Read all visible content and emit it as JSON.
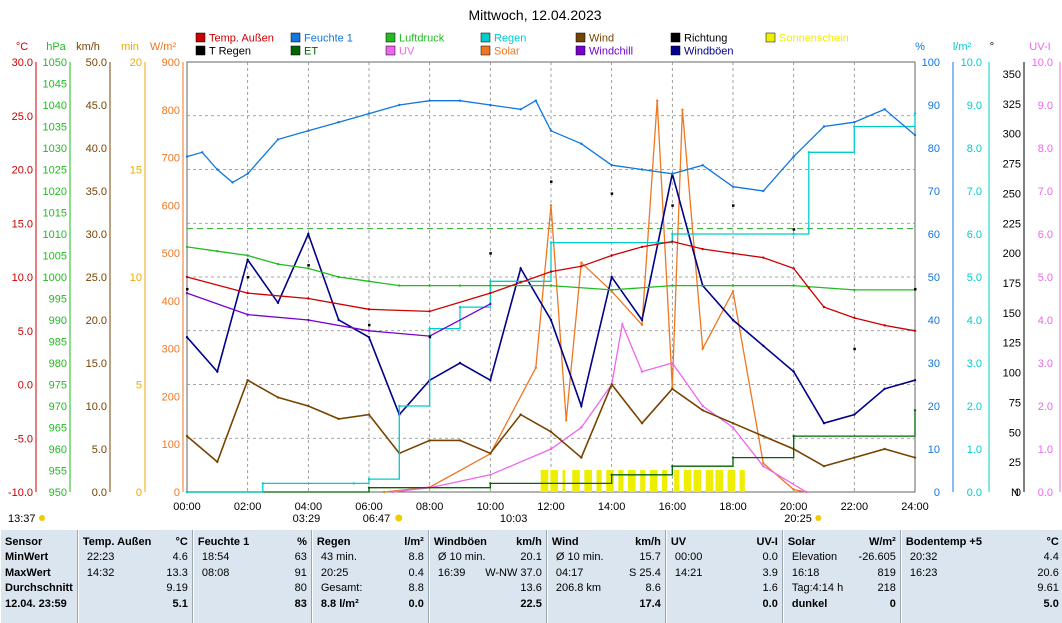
{
  "title": "Mittwoch, 12.04.2023",
  "colors": {
    "temp": "#cc0000",
    "humidity": "#1177dd",
    "pressure": "#22bb22",
    "rain": "#00cccc",
    "wind": "#774400",
    "direction": "#000000",
    "sunshine": "#eeee00",
    "rain_t": "#eeaa00",
    "et": "#006600",
    "uv": "#ee66ee",
    "solar": "#ee7722",
    "windchill": "#7700cc",
    "gusts": "#000088",
    "grid": "#888888",
    "dew_dash": "#22aa22"
  },
  "legend": [
    {
      "label": "Temp. Außen",
      "color": "#cc0000"
    },
    {
      "label": "Feuchte 1",
      "color": "#1177dd"
    },
    {
      "label": "Luftdruck",
      "color": "#22bb22"
    },
    {
      "label": "Regen",
      "color": "#00cccc"
    },
    {
      "label": "Wind",
      "color": "#774400"
    },
    {
      "label": "Richtung",
      "color": "#000000"
    },
    {
      "label": "Sonnenschein",
      "color": "#eeee00"
    },
    {
      "label": "T Regen",
      "color": "#000000"
    },
    {
      "label": "ET",
      "color": "#006600"
    },
    {
      "label": "UV",
      "color": "#ee66ee"
    },
    {
      "label": "Solar",
      "color": "#ee7722"
    },
    {
      "label": "Windchill",
      "color": "#7700cc"
    },
    {
      "label": "Windböen",
      "color": "#000088"
    }
  ],
  "axes_left": [
    {
      "unit": "°C",
      "color": "#cc0000",
      "ticks": [
        "30.0",
        "25.0",
        "20.0",
        "15.0",
        "10.0",
        "5.0",
        "0.0",
        "-5.0",
        "-10.0"
      ]
    },
    {
      "unit": "hPa",
      "color": "#22bb22",
      "ticks": [
        "1050",
        "1045",
        "1040",
        "1035",
        "1030",
        "1025",
        "1020",
        "1015",
        "1010",
        "1005",
        "1000",
        "995",
        "990",
        "985",
        "980",
        "975",
        "970",
        "965",
        "960",
        "955",
        "950"
      ]
    },
    {
      "unit": "km/h",
      "color": "#774400",
      "ticks": [
        "50.0",
        "45.0",
        "40.0",
        "35.0",
        "30.0",
        "25.0",
        "20.0",
        "15.0",
        "10.0",
        "5.0",
        "0.0"
      ]
    },
    {
      "unit": "min",
      "color": "#eeaa00",
      "ticks": [
        "20",
        "15",
        "10",
        "5",
        "0"
      ]
    },
    {
      "unit": "W/m²",
      "color": "#ee7722",
      "ticks": [
        "900",
        "800",
        "700",
        "600",
        "500",
        "400",
        "300",
        "200",
        "100",
        "0"
      ]
    }
  ],
  "axes_right": [
    {
      "unit": "%",
      "color": "#1177dd",
      "ticks": [
        "100",
        "90",
        "80",
        "70",
        "60",
        "50",
        "40",
        "30",
        "20",
        "10",
        "0"
      ]
    },
    {
      "unit": "l/m²",
      "color": "#00cccc",
      "ticks": [
        "10.0",
        "9.0",
        "8.0",
        "7.0",
        "6.0",
        "5.0",
        "4.0",
        "3.0",
        "2.0",
        "1.0",
        "0.0"
      ]
    },
    {
      "unit": "°",
      "color": "#000000",
      "ticks": [
        "350",
        "325",
        "300",
        "275",
        "250",
        "225",
        "200",
        "175",
        "150",
        "125",
        "100",
        "75",
        "50",
        "25",
        "0"
      ],
      "bottom_label": "N"
    },
    {
      "unit": "UV-I",
      "color": "#ee66ee",
      "ticks": [
        "10.0",
        "9.0",
        "8.0",
        "7.0",
        "6.0",
        "5.0",
        "4.0",
        "3.0",
        "2.0",
        "1.0",
        "0.0"
      ]
    }
  ],
  "x_ticks": [
    "00:00",
    "02:00",
    "04:00",
    "06:00",
    "08:00",
    "10:00",
    "12:00",
    "14:00",
    "16:00",
    "18:00",
    "20:00",
    "22:00",
    "24:00"
  ],
  "time_markers": {
    "left": "13:37",
    "moonrise": "03:29",
    "sunrise": "06:47",
    "rain_marker": "10:03",
    "sunset": "20:25"
  },
  "chart_data": {
    "type": "line",
    "title": "Mittwoch, 12.04.2023",
    "x_range": [
      "00:00",
      "24:00"
    ],
    "series": [
      {
        "name": "Temp. Außen",
        "unit": "°C",
        "x": [
          "00:00",
          "02:00",
          "04:00",
          "06:00",
          "08:00",
          "10:00",
          "11:00",
          "12:00",
          "13:00",
          "14:00",
          "15:00",
          "16:00",
          "17:00",
          "18:00",
          "19:00",
          "20:00",
          "20:30",
          "21:00",
          "22:00",
          "23:00",
          "24:00"
        ],
        "values": [
          10.0,
          8.5,
          8.0,
          7.0,
          6.8,
          8.5,
          9.5,
          10.5,
          11.0,
          12.0,
          12.8,
          13.3,
          12.6,
          12.2,
          11.8,
          10.8,
          9.0,
          7.2,
          6.2,
          5.5,
          5.0
        ]
      },
      {
        "name": "Feuchte 1",
        "unit": "%",
        "x": [
          "00:00",
          "00:30",
          "01:00",
          "01:30",
          "02:00",
          "03:00",
          "04:00",
          "05:00",
          "06:00",
          "07:00",
          "08:00",
          "09:00",
          "10:00",
          "11:00",
          "11:30",
          "12:00",
          "13:00",
          "14:00",
          "15:00",
          "16:00",
          "17:00",
          "18:00",
          "19:00",
          "20:00",
          "21:00",
          "22:00",
          "23:00",
          "24:00"
        ],
        "values": [
          78,
          79,
          75,
          72,
          74,
          82,
          84,
          86,
          88,
          90,
          91,
          91,
          90,
          89,
          91,
          84,
          81,
          76,
          75,
          74,
          76,
          71,
          70,
          78,
          85,
          86,
          89,
          83
        ]
      },
      {
        "name": "Luftdruck",
        "unit": "hPa",
        "x": [
          "00:00",
          "01:00",
          "02:00",
          "03:00",
          "04:00",
          "05:00",
          "06:00",
          "07:00",
          "08:00",
          "09:00",
          "10:00",
          "12:00",
          "14:00",
          "16:00",
          "18:00",
          "20:00",
          "22:00",
          "24:00"
        ],
        "values": [
          1007,
          1006,
          1005,
          1003,
          1002,
          1000,
          999,
          998,
          998,
          998,
          998,
          998,
          997,
          998,
          998,
          998,
          997,
          997
        ]
      },
      {
        "name": "Regen",
        "unit": "l/m²",
        "x": [
          "00:00",
          "02:30",
          "05:30",
          "06:00",
          "07:00",
          "08:00",
          "09:00",
          "10:00",
          "12:00",
          "15:30",
          "16:00",
          "20:00",
          "20:30",
          "22:00",
          "24:00"
        ],
        "values": [
          0,
          0.2,
          0.2,
          0.3,
          2.0,
          3.8,
          4.3,
          4.9,
          5.8,
          5.8,
          6.0,
          6.0,
          7.9,
          8.5,
          8.8
        ]
      },
      {
        "name": "Wind",
        "unit": "km/h",
        "x": [
          "00:00",
          "01:00",
          "02:00",
          "03:00",
          "04:00",
          "05:00",
          "06:00",
          "07:00",
          "08:00",
          "09:00",
          "10:00",
          "11:00",
          "12:00",
          "13:00",
          "14:00",
          "15:00",
          "16:00",
          "17:00",
          "18:00",
          "19:00",
          "20:00",
          "21:00",
          "22:00",
          "23:00",
          "24:00"
        ],
        "values": [
          6.5,
          3.5,
          13.0,
          11.0,
          10.0,
          8.5,
          9.0,
          4.5,
          6.0,
          6.0,
          4.5,
          9.0,
          7.0,
          4.0,
          12.5,
          8.0,
          12.0,
          9.5,
          8.0,
          6.5,
          5.0,
          3.0,
          4.0,
          5.0,
          4.0
        ]
      },
      {
        "name": "Windböen",
        "unit": "km/h",
        "x": [
          "00:00",
          "01:00",
          "02:00",
          "03:00",
          "04:00",
          "05:00",
          "06:00",
          "07:00",
          "08:00",
          "09:00",
          "10:00",
          "11:00",
          "12:00",
          "13:00",
          "14:00",
          "15:00",
          "16:00",
          "17:00",
          "18:00",
          "19:00",
          "20:00",
          "21:00",
          "22:00",
          "23:00",
          "24:00"
        ],
        "values": [
          18,
          14,
          27,
          22,
          30,
          20,
          18,
          9,
          13,
          15,
          13,
          26,
          20,
          10,
          25,
          20,
          37,
          24,
          20,
          17,
          14,
          8,
          9,
          12,
          13
        ]
      },
      {
        "name": "Windchill",
        "unit": "°C",
        "x": [
          "00:00",
          "02:00",
          "04:00",
          "06:00",
          "08:00",
          "10:00"
        ],
        "values": [
          8.5,
          6.5,
          6.0,
          5.0,
          4.5,
          7.5
        ]
      },
      {
        "name": "Solar",
        "unit": "W/m²",
        "x": [
          "06:30",
          "08:00",
          "10:00",
          "11:30",
          "12:00",
          "12:30",
          "13:00",
          "14:00",
          "15:00",
          "15:30",
          "16:00",
          "16:20",
          "17:00",
          "18:00",
          "19:00",
          "20:00",
          "20:25"
        ],
        "values": [
          0,
          10,
          80,
          260,
          600,
          150,
          480,
          420,
          350,
          819,
          220,
          800,
          300,
          420,
          60,
          5,
          0
        ]
      },
      {
        "name": "UV",
        "unit": "UV-I",
        "x": [
          "06:47",
          "08:00",
          "10:00",
          "12:00",
          "13:00",
          "14:00",
          "14:21",
          "15:00",
          "16:00",
          "17:00",
          "18:00",
          "19:00",
          "20:25"
        ],
        "values": [
          0,
          0.1,
          0.4,
          1.0,
          1.5,
          2.5,
          3.9,
          2.8,
          3.0,
          2.0,
          1.5,
          0.6,
          0
        ]
      },
      {
        "name": "ET",
        "unit": "l/m²",
        "x": [
          "00:00",
          "06:00",
          "10:00",
          "14:00",
          "16:00",
          "18:00",
          "20:00",
          "24:00"
        ],
        "values": [
          0,
          0.1,
          0.2,
          0.4,
          0.6,
          0.8,
          1.3,
          1.9
        ]
      },
      {
        "name": "Richtung",
        "unit": "°",
        "x": [
          "00:00",
          "02:00",
          "04:00",
          "06:00",
          "08:00",
          "10:00",
          "12:00",
          "14:00",
          "16:00",
          "18:00",
          "20:00",
          "22:00",
          "24:00"
        ],
        "values": [
          170,
          180,
          190,
          140,
          130,
          200,
          260,
          250,
          240,
          240,
          220,
          120,
          170
        ]
      }
    ]
  },
  "stats": {
    "row_labels": [
      "Sensor",
      "MinWert",
      "MaxWert",
      "Durchschnitt",
      "12.04.  23:59"
    ],
    "groups": [
      {
        "name": "Temp. Außen",
        "unit": "°C",
        "rows": [
          [
            "22:23",
            "4.6"
          ],
          [
            "14:32",
            "13.3"
          ],
          [
            "",
            "9.19"
          ],
          [
            "",
            "5.1"
          ]
        ]
      },
      {
        "name": "Feuchte 1",
        "unit": "%",
        "rows": [
          [
            "18:54",
            "63"
          ],
          [
            "08:08",
            "91"
          ],
          [
            "",
            "80"
          ],
          [
            "",
            "83"
          ]
        ]
      },
      {
        "name": "Regen",
        "unit": "l/m²",
        "rows": [
          [
            "43 min.",
            "8.8"
          ],
          [
            "20:25",
            "0.4"
          ],
          [
            "Gesamt:",
            "8.8"
          ],
          [
            "8.8 l/m²",
            "0.0"
          ]
        ]
      },
      {
        "name": "Windböen",
        "unit": "km/h",
        "rows": [
          [
            "Ø 10 min.",
            "20.1"
          ],
          [
            "16:39",
            "W-NW 37.0"
          ],
          [
            "",
            "13.6"
          ],
          [
            "",
            "22.5"
          ]
        ]
      },
      {
        "name": "Wind",
        "unit": "km/h",
        "rows": [
          [
            "Ø 10 min.",
            "15.7"
          ],
          [
            "04:17",
            "S 25.4"
          ],
          [
            "206.8 km",
            "8.6"
          ],
          [
            "",
            "17.4"
          ]
        ]
      },
      {
        "name": "UV",
        "unit": "UV-I",
        "rows": [
          [
            "00:00",
            "0.0"
          ],
          [
            "14:21",
            "3.9"
          ],
          [
            "",
            "1.6"
          ],
          [
            "",
            "0.0"
          ]
        ]
      },
      {
        "name": "Solar",
        "unit": "W/m²",
        "rows": [
          [
            "Elevation",
            "-26.605"
          ],
          [
            "16:18",
            "819"
          ],
          [
            "Tag:4:14 h",
            "218"
          ],
          [
            "dunkel",
            "0"
          ]
        ]
      },
      {
        "name": "Bodentemp +5",
        "unit": "°C",
        "rows": [
          [
            "20:32",
            "4.4"
          ],
          [
            "16:23",
            "20.6"
          ],
          [
            "",
            "9.61"
          ],
          [
            "",
            "5.0"
          ]
        ]
      }
    ]
  }
}
